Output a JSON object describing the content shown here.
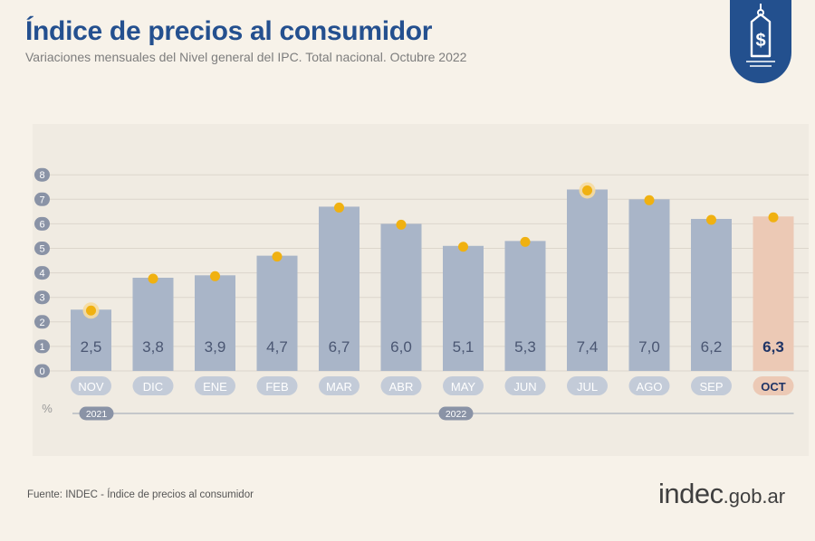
{
  "header": {
    "title": "Índice de precios al consumidor",
    "subtitle": "Variaciones mensuales del Nivel general del IPC. Total nacional. Octubre 2022"
  },
  "badge": {
    "icon": "price-tag-dollar-icon",
    "color": "#23508e"
  },
  "footer": {
    "source": "Fuente: INDEC - Índice de precios al consumidor",
    "brand_main": "indec",
    "brand_suffix": ".gob.ar"
  },
  "chart_data": {
    "type": "bar",
    "ylabel": "%",
    "ylim": [
      0,
      8
    ],
    "yticks": [
      "0",
      "1",
      "2",
      "3",
      "4",
      "5",
      "6",
      "7",
      "8"
    ],
    "categories": [
      "NOV",
      "DIC",
      "ENE",
      "FEB",
      "MAR",
      "ABR",
      "MAY",
      "JUN",
      "JUL",
      "AGO",
      "SEP",
      "OCT"
    ],
    "values": [
      2.5,
      3.8,
      3.9,
      4.7,
      6.7,
      6.0,
      5.1,
      5.3,
      7.4,
      7.0,
      6.2,
      6.3
    ],
    "value_labels": [
      "2,5",
      "3,8",
      "3,9",
      "4,7",
      "6,7",
      "6,0",
      "5,1",
      "5,3",
      "7,4",
      "7,0",
      "6,2",
      "6,3"
    ],
    "highlighted_marker_index": [
      0,
      8
    ],
    "highlight_last": true,
    "year_groups": [
      {
        "label": "2021",
        "start": 0,
        "end": 0
      },
      {
        "label": "2022",
        "start": 1,
        "end": 11
      }
    ],
    "grid": true,
    "colors": {
      "bar": "#a9b5c8",
      "bar_highlight": "#ecc9b5",
      "marker": "#f0b111",
      "label": "#4a5672",
      "label_highlight": "#1f3466"
    }
  }
}
